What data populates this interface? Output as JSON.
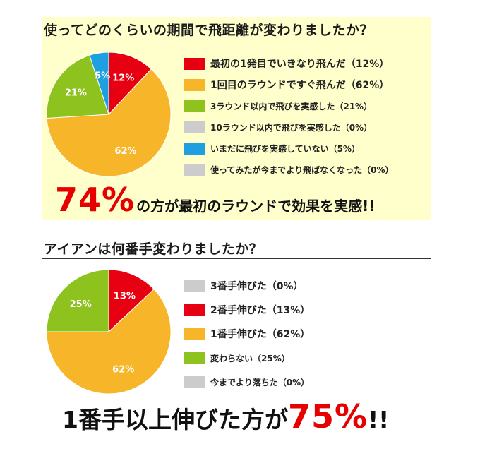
{
  "chart_data": [
    {
      "type": "pie",
      "title": "使ってどのくらいの期間で飛距離が変わりましたか？",
      "categories": [
        "最初の1発目でいきなり飛んだ（12%）",
        "1回目のラウンドですぐ飛んだ（62%）",
        "3ラウンド以内で飛びを実感した（21%）",
        "10ラウンド以内で飛びを実感した（0%）",
        "いまだに飛びを実感していない（5%）",
        "使ってみたが今までより飛ばなくなった（0%）"
      ],
      "values": [
        12,
        62,
        21,
        0,
        5,
        0
      ],
      "slice_labels": [
        "12%",
        "62%",
        "21%",
        "0%",
        "5%",
        "0%"
      ],
      "colors": [
        "#e60012",
        "#f7b52a",
        "#8dc21f",
        "#cccccc",
        "#1e9fe0",
        "#cccccc"
      ],
      "legend": "right",
      "headline_big": "74%",
      "headline_rest": "の方が最初のラウンドで効果を実感!!"
    },
    {
      "type": "pie",
      "title": "アイアンは何番手変わりましたか？",
      "categories": [
        "3番手伸びた（0%）",
        "2番手伸びた（13%）",
        "1番手伸びた（62%）",
        "変わらない（25%）",
        "今までより落ちた（0%）"
      ],
      "values": [
        0,
        13,
        62,
        25,
        0
      ],
      "slice_labels": [
        "0%",
        "13%",
        "62%",
        "25%",
        "0%"
      ],
      "colors": [
        "#cccccc",
        "#e60012",
        "#f7b52a",
        "#8dc21f",
        "#cccccc"
      ],
      "legend": "right",
      "headline_pre": "1番手以上伸びた方が",
      "headline_big": "75%",
      "headline_post": "!!"
    }
  ]
}
